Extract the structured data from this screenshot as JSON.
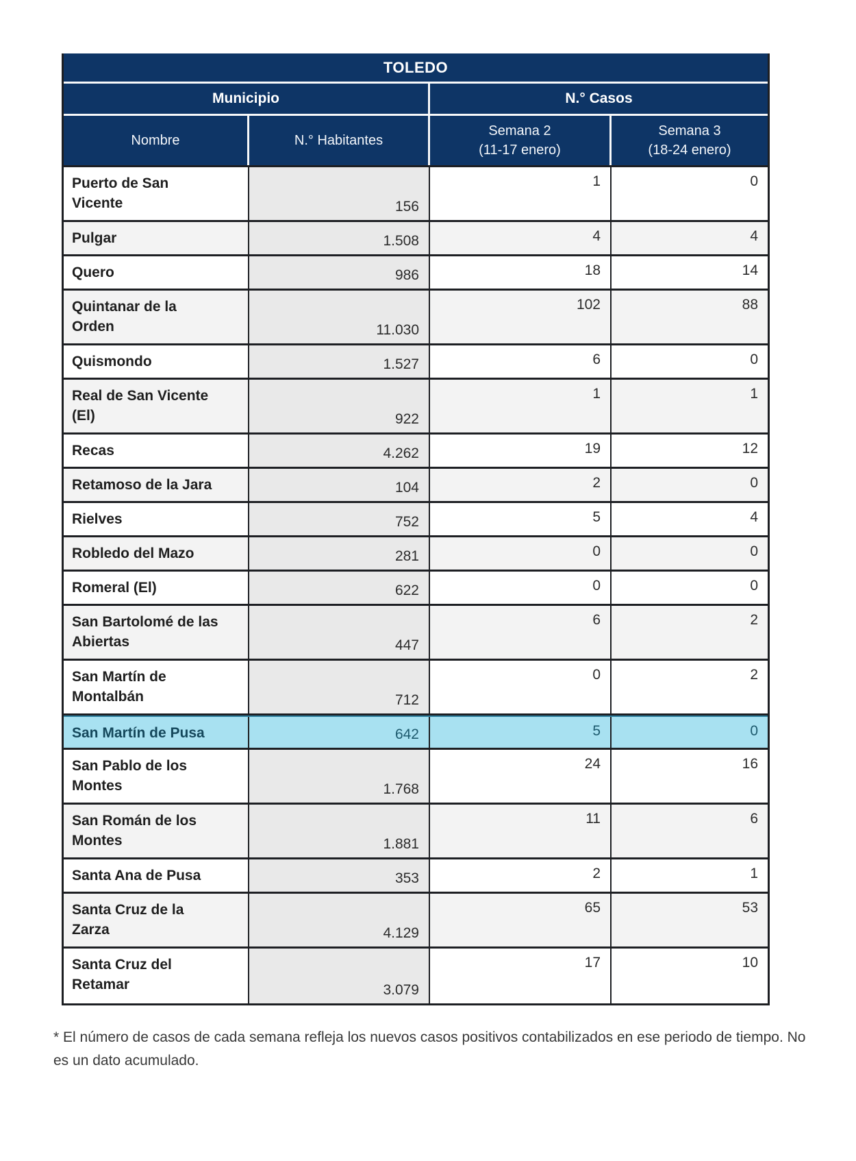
{
  "table": {
    "title": "TOLEDO",
    "group_headers": {
      "municipio": "Municipio",
      "casos": "N.° Casos"
    },
    "columns": {
      "nombre": "Nombre",
      "habitantes": "N.° Habitantes",
      "semana2_line1": "Semana 2",
      "semana2_line2": "(11-17 enero)",
      "semana3_line1": "Semana 3",
      "semana3_line2": "(18-24 enero)"
    },
    "rows": [
      {
        "name": "Puerto de San\nVicente",
        "habitantes": "156",
        "semana2": "1",
        "semana3": "0",
        "highlighted": false
      },
      {
        "name": "Pulgar",
        "habitantes": "1.508",
        "semana2": "4",
        "semana3": "4",
        "highlighted": false
      },
      {
        "name": "Quero",
        "habitantes": "986",
        "semana2": "18",
        "semana3": "14",
        "highlighted": false
      },
      {
        "name": "Quintanar de la\nOrden",
        "habitantes": "11.030",
        "semana2": "102",
        "semana3": "88",
        "highlighted": false
      },
      {
        "name": "Quismondo",
        "habitantes": "1.527",
        "semana2": "6",
        "semana3": "0",
        "highlighted": false
      },
      {
        "name": "Real de San Vicente\n(El)",
        "habitantes": "922",
        "semana2": "1",
        "semana3": "1",
        "highlighted": false
      },
      {
        "name": "Recas",
        "habitantes": "4.262",
        "semana2": "19",
        "semana3": "12",
        "highlighted": false
      },
      {
        "name": "Retamoso de la Jara",
        "habitantes": "104",
        "semana2": "2",
        "semana3": "0",
        "highlighted": false
      },
      {
        "name": "Rielves",
        "habitantes": "752",
        "semana2": "5",
        "semana3": "4",
        "highlighted": false
      },
      {
        "name": "Robledo del Mazo",
        "habitantes": "281",
        "semana2": "0",
        "semana3": "0",
        "highlighted": false
      },
      {
        "name": "Romeral (El)",
        "habitantes": "622",
        "semana2": "0",
        "semana3": "0",
        "highlighted": false
      },
      {
        "name": "San Bartolomé de las\nAbiertas",
        "habitantes": "447",
        "semana2": "6",
        "semana3": "2",
        "highlighted": false
      },
      {
        "name": "San Martín de\nMontalbán",
        "habitantes": "712",
        "semana2": "0",
        "semana3": "2",
        "highlighted": false
      },
      {
        "name": "San Martín de Pusa",
        "habitantes": "642",
        "semana2": "5",
        "semana3": "0",
        "highlighted": true
      },
      {
        "name": "San Pablo de los\nMontes",
        "habitantes": "1.768",
        "semana2": "24",
        "semana3": "16",
        "highlighted": false
      },
      {
        "name": "San Román de los\nMontes",
        "habitantes": "1.881",
        "semana2": "11",
        "semana3": "6",
        "highlighted": false
      },
      {
        "name": "Santa Ana de Pusa",
        "habitantes": "353",
        "semana2": "2",
        "semana3": "1",
        "highlighted": false
      },
      {
        "name": "Santa Cruz de la\nZarza",
        "habitantes": "4.129",
        "semana2": "65",
        "semana3": "53",
        "highlighted": false
      },
      {
        "name": "Santa Cruz del\nRetamar",
        "habitantes": "3.079",
        "semana2": "17",
        "semana3": "10",
        "highlighted": false
      }
    ]
  },
  "footnote": "* El número de casos de cada semana refleja los nuevos casos positivos contabilizados en ese periodo de tiempo. No es un dato acumulado.",
  "colors": {
    "header_navy": "#0e3566",
    "header_text": "#ffffff",
    "zebra_gray": "#f3f3f3",
    "habitantes_gray": "#e9e9e9",
    "highlight_blue": "#a8e1f1",
    "highlight_text": "#15485c",
    "border_dark": "#1d1f23"
  }
}
